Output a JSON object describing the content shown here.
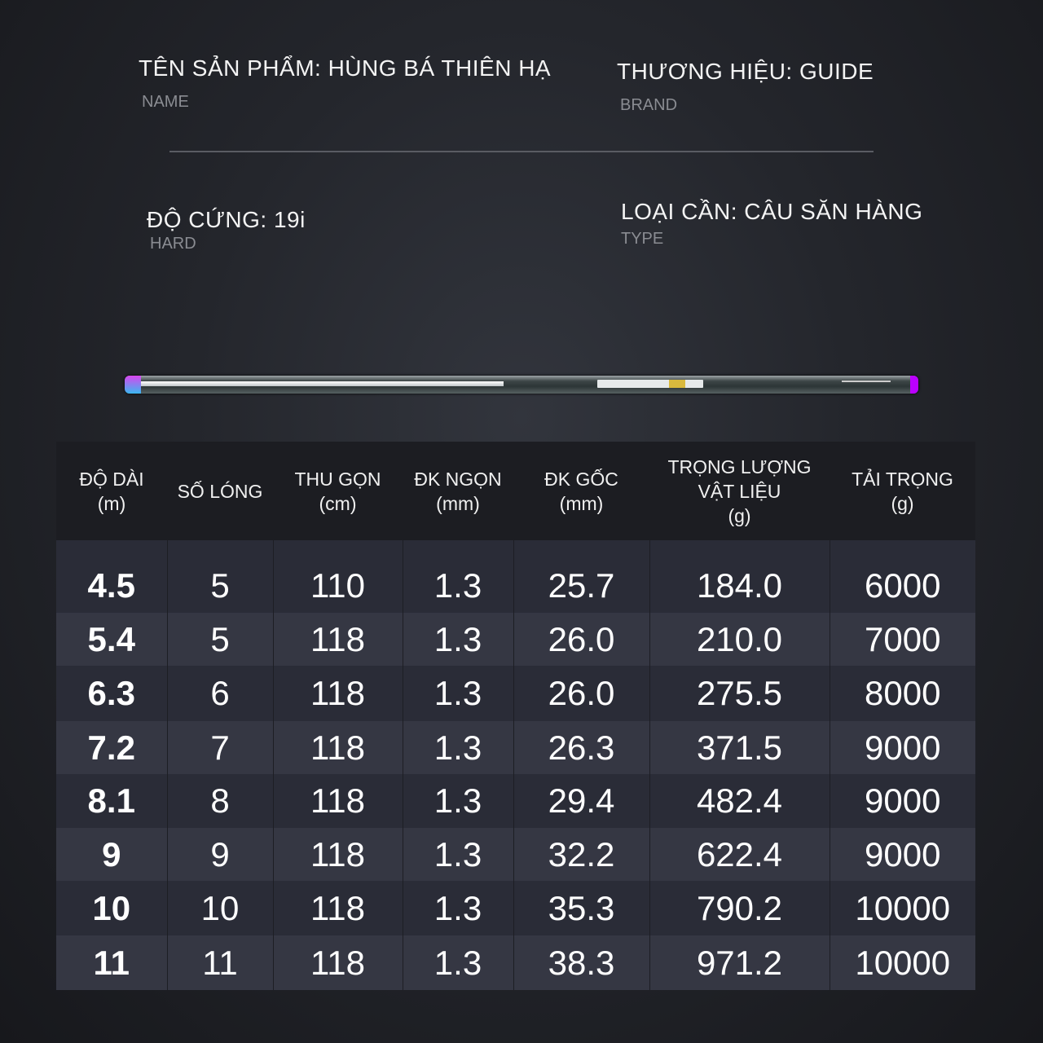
{
  "specs": {
    "name": {
      "value": "TÊN SẢN PHẨM: HÙNG BÁ THIÊN HẠ",
      "label": "NAME"
    },
    "brand": {
      "value": "THƯƠNG HIỆU: GUIDE",
      "label": "BRAND"
    },
    "hard": {
      "value": "ĐỘ CỨNG: 19i",
      "label": "HARD"
    },
    "type": {
      "value": "LOẠI CẦN: CÂU SĂN HÀNG",
      "label": "TYPE"
    }
  },
  "table": {
    "headers": [
      [
        "ĐỘ DÀI",
        "(m)"
      ],
      [
        "SỐ LÓNG",
        ""
      ],
      [
        "THU GỌN",
        "(cm)"
      ],
      [
        "ĐK NGỌN",
        "(mm)"
      ],
      [
        "ĐK GỐC",
        "(mm)"
      ],
      [
        "TRỌNG LƯỢNG",
        "VẬT LIỆU",
        "(g)"
      ],
      [
        "TẢI TRỌNG",
        "(g)"
      ]
    ],
    "rows": [
      [
        "4.5",
        "5",
        "110",
        "1.3",
        "25.7",
        "184.0",
        "6000"
      ],
      [
        "5.4",
        "5",
        "118",
        "1.3",
        "26.0",
        "210.0",
        "7000"
      ],
      [
        "6.3",
        "6",
        "118",
        "1.3",
        "26.0",
        "275.5",
        "8000"
      ],
      [
        "7.2",
        "7",
        "118",
        "1.3",
        "26.3",
        "371.5",
        "9000"
      ],
      [
        "8.1",
        "8",
        "118",
        "1.3",
        "29.4",
        "482.4",
        "9000"
      ],
      [
        "9",
        "9",
        "118",
        "1.3",
        "32.2",
        "622.4",
        "9000"
      ],
      [
        "10",
        "10",
        "118",
        "1.3",
        "35.3",
        "790.2",
        "10000"
      ],
      [
        "11",
        "11",
        "118",
        "1.3",
        "38.3",
        "971.2",
        "10000"
      ]
    ]
  }
}
